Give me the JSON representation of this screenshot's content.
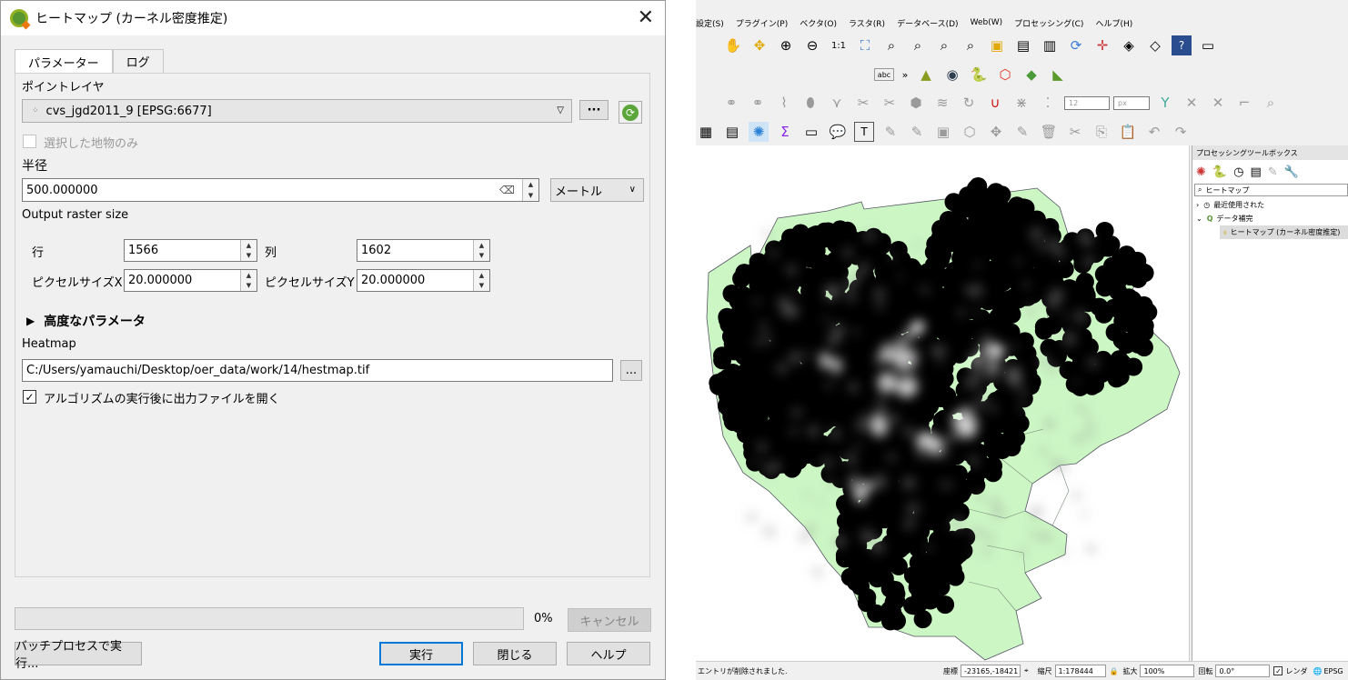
{
  "dialog": {
    "title": "ヒートマップ (カーネル密度推定)",
    "tabs": [
      {
        "label": "パラメーター"
      },
      {
        "label": "ログ"
      }
    ],
    "point_layer": {
      "label": "ポイントレイヤ",
      "value": "cvs_jgd2011_9 [EPSG:6677]",
      "browse": "···"
    },
    "selected_only": {
      "label": "選択した地物のみ",
      "checked": false
    },
    "radius": {
      "label": "半径",
      "value": "500.000000",
      "unit": "メートル"
    },
    "raster_size": {
      "label": "Output raster size"
    },
    "rows": {
      "label": "行",
      "value": "1566"
    },
    "cols": {
      "label": "列",
      "value": "1602"
    },
    "pixel_x": {
      "label": "ピクセルサイズX",
      "value": "20.000000"
    },
    "pixel_y": {
      "label": "ピクセルサイズY",
      "value": "20.000000"
    },
    "advanced": {
      "label": "高度なパラメータ"
    },
    "output": {
      "label": "Heatmap",
      "value": "C:/Users/yamauchi/Desktop/oer_data/work/14/hestmap.tif",
      "browse": "..."
    },
    "open_after": {
      "label": "アルゴリズムの実行後に出力ファイルを開く",
      "checked": true
    },
    "progress": {
      "percent": "0%",
      "fraction": 0
    },
    "buttons": {
      "cancel": "キャンセル",
      "batch": "バッチプロセスで実行...",
      "run": "実行",
      "close": "閉じる",
      "help": "ヘルプ"
    }
  },
  "qgis": {
    "menu": [
      "設定(S)",
      "プラグイン(P)",
      "ベクタ(O)",
      "ラスタ(R)",
      "データベース(D)",
      "Web(W)",
      "プロセッシング(C)",
      "ヘルプ(H)"
    ],
    "snap_tolerance": "12",
    "snap_unit": "px",
    "toolbox": {
      "title": "プロセッシングツールボックス",
      "search": "ヒートマップ",
      "items": [
        {
          "label": "最近使用された"
        },
        {
          "label": "データ補完"
        },
        {
          "label": "ヒートマップ (カーネル密度推定)"
        }
      ]
    },
    "status": {
      "message": "エントリが削除されました.",
      "coord_label": "座標",
      "coord": "-23165,-18421",
      "scale_label": "縮尺",
      "scale": "1:178444",
      "magnifier_label": "拡大",
      "magnifier": "100%",
      "rotation_label": "回転",
      "rotation": "0.0°",
      "render_label": "レンダ",
      "crs": "EPSG"
    },
    "colors": {
      "land": "#ccf7c4",
      "heat_dark": "#000000",
      "heat_light": "#ffffff"
    }
  }
}
